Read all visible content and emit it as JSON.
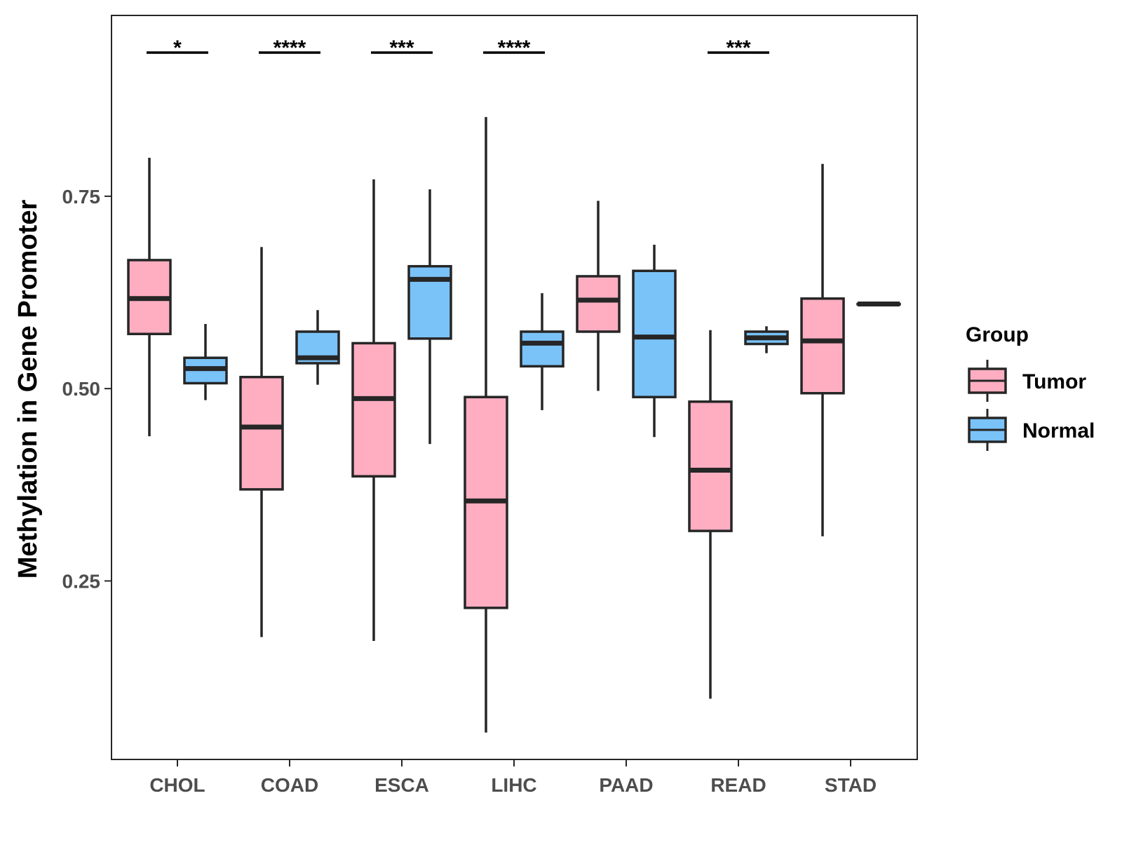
{
  "chart_data": {
    "type": "boxplot",
    "title": "",
    "xlabel": "",
    "ylabel": "Methylation in Gene Promoter",
    "ylim": [
      0.018,
      0.985
    ],
    "yticks": [
      0.25,
      0.5,
      0.75
    ],
    "ytick_labels": [
      "0.25",
      "0.50",
      "0.75"
    ],
    "grid": false,
    "legend_position": "right",
    "legend_title": "Group",
    "categories": [
      "CHOL",
      "COAD",
      "ESCA",
      "LIHC",
      "PAAD",
      "READ",
      "STAD"
    ],
    "series": [
      {
        "name": "Tumor",
        "color": "#FFAEC2",
        "boxes": [
          {
            "low": 0.438,
            "q1": 0.571,
            "median": 0.617,
            "q3": 0.667,
            "high": 0.8
          },
          {
            "low": 0.177,
            "q1": 0.369,
            "median": 0.45,
            "q3": 0.515,
            "high": 0.684
          },
          {
            "low": 0.172,
            "q1": 0.386,
            "median": 0.487,
            "q3": 0.559,
            "high": 0.772
          },
          {
            "low": 0.053,
            "q1": 0.215,
            "median": 0.354,
            "q3": 0.489,
            "high": 0.853
          },
          {
            "low": 0.497,
            "q1": 0.574,
            "median": 0.615,
            "q3": 0.646,
            "high": 0.744
          },
          {
            "low": 0.097,
            "q1": 0.315,
            "median": 0.394,
            "q3": 0.483,
            "high": 0.576
          },
          {
            "low": 0.308,
            "q1": 0.494,
            "median": 0.562,
            "q3": 0.617,
            "high": 0.792
          }
        ]
      },
      {
        "name": "Normal",
        "color": "#7AC3F9",
        "boxes": [
          {
            "low": 0.485,
            "q1": 0.507,
            "median": 0.526,
            "q3": 0.54,
            "high": 0.584
          },
          {
            "low": 0.505,
            "q1": 0.533,
            "median": 0.54,
            "q3": 0.574,
            "high": 0.602
          },
          {
            "low": 0.428,
            "q1": 0.565,
            "median": 0.642,
            "q3": 0.659,
            "high": 0.759
          },
          {
            "low": 0.472,
            "q1": 0.529,
            "median": 0.559,
            "q3": 0.574,
            "high": 0.624
          },
          {
            "low": 0.437,
            "q1": 0.489,
            "median": 0.567,
            "q3": 0.653,
            "high": 0.687
          },
          {
            "low": 0.546,
            "q1": 0.558,
            "median": 0.566,
            "q3": 0.574,
            "high": 0.581
          },
          {
            "low": 0.61,
            "q1": 0.61,
            "median": 0.61,
            "q3": 0.61,
            "high": 0.61
          }
        ]
      }
    ],
    "significance": [
      {
        "category": "CHOL",
        "label": "*"
      },
      {
        "category": "COAD",
        "label": "****"
      },
      {
        "category": "ESCA",
        "label": "***"
      },
      {
        "category": "LIHC",
        "label": "****"
      },
      {
        "category": "READ",
        "label": "***"
      }
    ]
  },
  "colors": {
    "tumor_fill": "#FFAEC2",
    "normal_fill": "#7AC3F9",
    "outline": "#262626",
    "tick_text": "#4d4d4d"
  }
}
